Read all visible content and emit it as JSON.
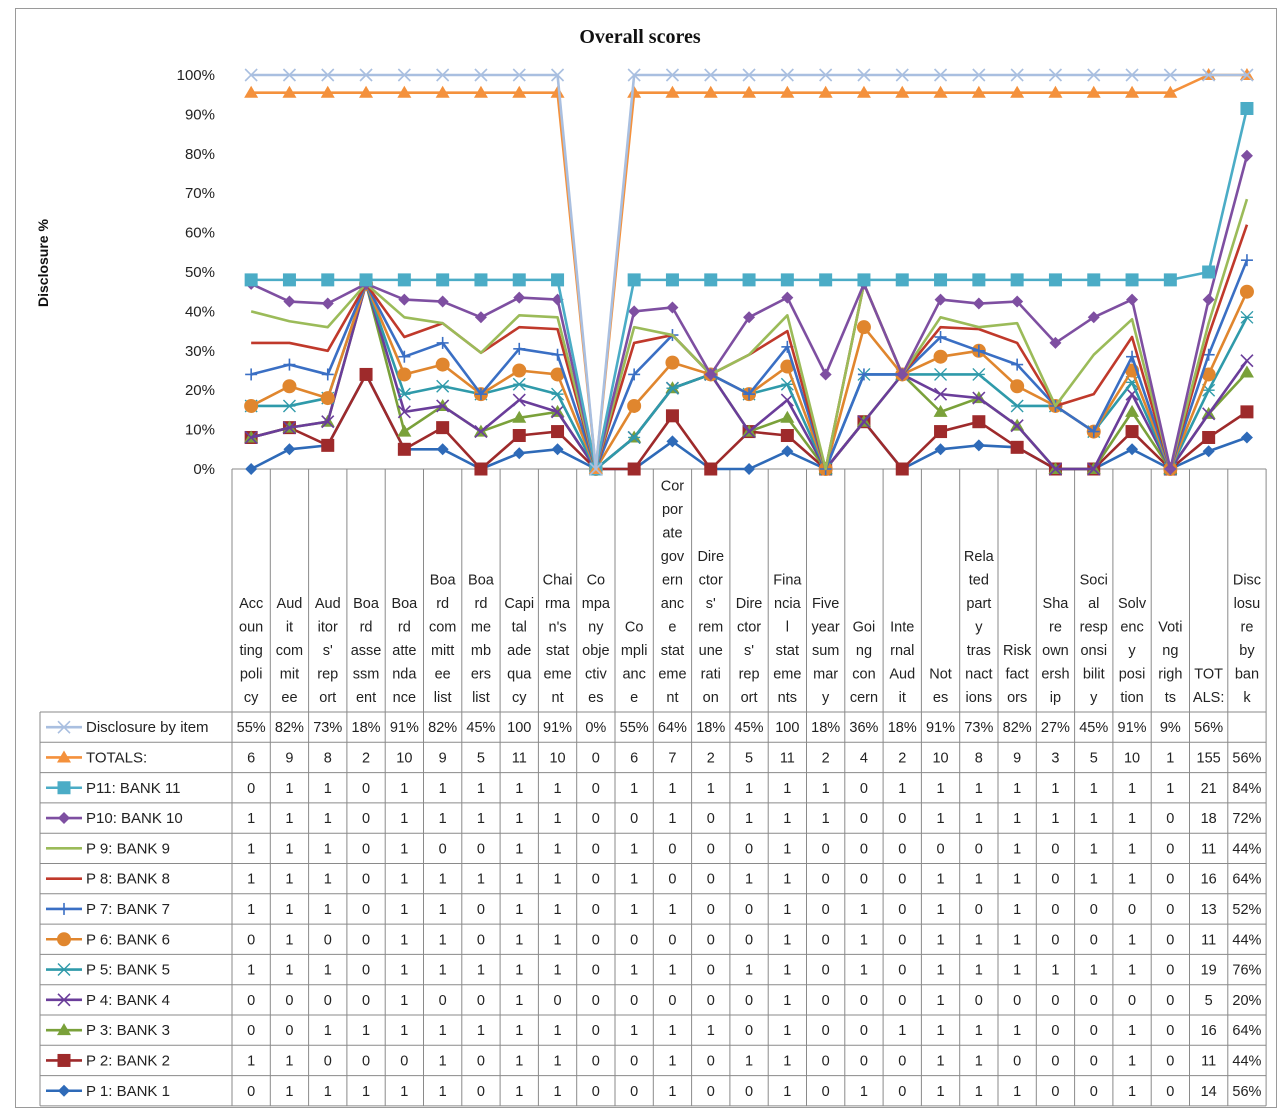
{
  "chart_data": {
    "type": "line",
    "title": "Overall scores",
    "ylabel": "Disclosure %",
    "xlabel": "",
    "ylim": [
      0,
      100
    ],
    "y_ticks": [
      "0%",
      "10%",
      "20%",
      "30%",
      "40%",
      "50%",
      "60%",
      "70%",
      "80%",
      "90%",
      "100%"
    ],
    "grid": false,
    "legend": "data-table-bottom",
    "categories": [
      "Accounting policy",
      "Audit commitee",
      "Auditor's report",
      "Board assessment",
      "Board attendance",
      "Board committee list",
      "Board members list",
      "Capital adequacy",
      "Chairman's statement",
      "Company objectives",
      "Compliance",
      "Corporate governance statement",
      "Director's remuneration",
      "Director's report",
      "Financial statements",
      "Five year summary",
      "Going concern",
      "Internal Audit",
      "Notes",
      "Related party trasnactions",
      "Risk factors",
      "Share ownership",
      "Social responsibility",
      "Solvency position",
      "Voting rights",
      "TOTALS:",
      "Disclosure by bank"
    ],
    "category_lines": [
      [
        "Acc",
        "oun",
        "ting",
        "poli",
        "cy"
      ],
      [
        "Aud",
        "it",
        "com",
        "mit",
        "ee"
      ],
      [
        "Aud",
        "itor",
        "s'",
        "rep",
        "ort"
      ],
      [
        "Boa",
        "rd",
        "asse",
        "ssm",
        "ent"
      ],
      [
        "Boa",
        "rd",
        "atte",
        "nda",
        "nce"
      ],
      [
        "Boa",
        "rd",
        "com",
        "mitt",
        "ee",
        "list"
      ],
      [
        "Boa",
        "rd",
        "me",
        "mb",
        "ers",
        "list"
      ],
      [
        "Capi",
        "tal",
        "ade",
        "qua",
        "cy"
      ],
      [
        "Chai",
        "rma",
        "n's",
        "stat",
        "eme",
        "nt"
      ],
      [
        "Co",
        "mpa",
        "ny",
        "obje",
        "ctiv",
        "es"
      ],
      [
        "Co",
        "mpli",
        "anc",
        "e"
      ],
      [
        "Cor",
        "por",
        "ate",
        "gov",
        "ern",
        "anc",
        "e",
        "stat",
        "eme",
        "nt"
      ],
      [
        "Dire",
        "ctor",
        "s'",
        "rem",
        "une",
        "rati",
        "on"
      ],
      [
        "Dire",
        "ctor",
        "s'",
        "rep",
        "ort"
      ],
      [
        "Fina",
        "ncia",
        "l",
        "stat",
        "eme",
        "nts"
      ],
      [
        "Five",
        "year",
        "sum",
        "mar",
        "y"
      ],
      [
        "Goi",
        "ng",
        "con",
        "cern"
      ],
      [
        "Inte",
        "rnal",
        "Aud",
        "it"
      ],
      [
        "Not",
        "es"
      ],
      [
        "Rela",
        "ted",
        "part",
        "y",
        "tras",
        "nact",
        "ions"
      ],
      [
        "Risk",
        "fact",
        "ors"
      ],
      [
        "Sha",
        "re",
        "own",
        "ersh",
        "ip"
      ],
      [
        "Soci",
        "al",
        "resp",
        "onsi",
        "bilit",
        "y"
      ],
      [
        "Solv",
        "enc",
        "y",
        "posi",
        "tion"
      ],
      [
        "Voti",
        "ng",
        "righ",
        "ts"
      ],
      [
        "TOT",
        "ALS:"
      ],
      [
        "Disc",
        "losu",
        "re",
        "by",
        "ban",
        "k"
      ]
    ],
    "table": {
      "disclosure_by_item": {
        "name": "Disclosure by item",
        "cells": [
          "55%",
          "82%",
          "73%",
          "18%",
          "91%",
          "82%",
          "45%",
          "100",
          "91%",
          "0%",
          "55%",
          "64%",
          "18%",
          "45%",
          "100",
          "18%",
          "36%",
          "18%",
          "91%",
          "73%",
          "82%",
          "27%",
          "45%",
          "91%",
          "9%",
          "56%",
          ""
        ]
      },
      "rows": [
        {
          "name": "TOTALS:",
          "cells": [
            "6",
            "9",
            "8",
            "2",
            "10",
            "9",
            "5",
            "11",
            "10",
            "0",
            "6",
            "7",
            "2",
            "5",
            "11",
            "2",
            "4",
            "2",
            "10",
            "8",
            "9",
            "3",
            "5",
            "10",
            "1",
            "155",
            "56%"
          ]
        },
        {
          "name": "P11: BANK 11",
          "cells": [
            "0",
            "1",
            "1",
            "0",
            "1",
            "1",
            "1",
            "1",
            "1",
            "0",
            "1",
            "1",
            "1",
            "1",
            "1",
            "1",
            "0",
            "1",
            "1",
            "1",
            "1",
            "1",
            "1",
            "1",
            "1",
            "21",
            "84%"
          ]
        },
        {
          "name": "P10: BANK 10",
          "cells": [
            "1",
            "1",
            "1",
            "0",
            "1",
            "1",
            "1",
            "1",
            "1",
            "0",
            "0",
            "1",
            "0",
            "1",
            "1",
            "1",
            "0",
            "0",
            "1",
            "1",
            "1",
            "1",
            "1",
            "1",
            "0",
            "18",
            "72%"
          ]
        },
        {
          "name": "P 9: BANK 9",
          "cells": [
            "1",
            "1",
            "1",
            "0",
            "1",
            "0",
            "0",
            "1",
            "1",
            "0",
            "1",
            "0",
            "0",
            "0",
            "1",
            "0",
            "0",
            "0",
            "0",
            "0",
            "1",
            "0",
            "1",
            "1",
            "0",
            "11",
            "44%"
          ]
        },
        {
          "name": "P 8: BANK 8",
          "cells": [
            "1",
            "1",
            "1",
            "0",
            "1",
            "1",
            "1",
            "1",
            "1",
            "0",
            "1",
            "0",
            "0",
            "1",
            "1",
            "0",
            "0",
            "0",
            "1",
            "1",
            "1",
            "0",
            "1",
            "1",
            "0",
            "16",
            "64%"
          ]
        },
        {
          "name": "P 7: BANK 7",
          "cells": [
            "1",
            "1",
            "1",
            "0",
            "1",
            "1",
            "0",
            "1",
            "1",
            "0",
            "1",
            "1",
            "0",
            "0",
            "1",
            "0",
            "1",
            "0",
            "1",
            "0",
            "1",
            "0",
            "0",
            "0",
            "0",
            "13",
            "52%"
          ]
        },
        {
          "name": "P 6: BANK 6",
          "cells": [
            "0",
            "1",
            "0",
            "0",
            "1",
            "1",
            "0",
            "1",
            "1",
            "0",
            "0",
            "0",
            "0",
            "0",
            "1",
            "0",
            "1",
            "0",
            "1",
            "1",
            "1",
            "0",
            "0",
            "1",
            "0",
            "11",
            "44%"
          ]
        },
        {
          "name": "P 5: BANK 5",
          "cells": [
            "1",
            "1",
            "1",
            "0",
            "1",
            "1",
            "1",
            "1",
            "1",
            "0",
            "1",
            "1",
            "0",
            "1",
            "1",
            "0",
            "1",
            "0",
            "1",
            "1",
            "1",
            "1",
            "1",
            "1",
            "0",
            "19",
            "76%"
          ]
        },
        {
          "name": "P 4: BANK 4",
          "cells": [
            "0",
            "0",
            "0",
            "0",
            "1",
            "0",
            "0",
            "1",
            "0",
            "0",
            "0",
            "0",
            "0",
            "0",
            "1",
            "0",
            "0",
            "0",
            "1",
            "0",
            "0",
            "0",
            "0",
            "0",
            "0",
            "5",
            "20%"
          ]
        },
        {
          "name": "P 3: BANK 3",
          "cells": [
            "0",
            "0",
            "1",
            "1",
            "1",
            "1",
            "1",
            "1",
            "1",
            "0",
            "1",
            "1",
            "1",
            "0",
            "1",
            "0",
            "0",
            "1",
            "1",
            "1",
            "1",
            "0",
            "0",
            "1",
            "0",
            "16",
            "64%"
          ]
        },
        {
          "name": "P 2: BANK 2",
          "cells": [
            "1",
            "1",
            "0",
            "0",
            "0",
            "1",
            "0",
            "1",
            "1",
            "0",
            "0",
            "1",
            "0",
            "1",
            "1",
            "0",
            "0",
            "0",
            "1",
            "1",
            "0",
            "0",
            "0",
            "1",
            "0",
            "11",
            "44%"
          ]
        },
        {
          "name": "P 1: BANK 1",
          "cells": [
            "0",
            "1",
            "1",
            "1",
            "1",
            "1",
            "0",
            "1",
            "1",
            "0",
            "0",
            "1",
            "0",
            "0",
            "1",
            "0",
            "1",
            "0",
            "1",
            "1",
            "1",
            "0",
            "0",
            "1",
            "0",
            "14",
            "56%"
          ]
        }
      ]
    },
    "series": [
      {
        "name": "Disclosure by item",
        "color": "#a9bfe0",
        "marker": "x",
        "values": [
          100,
          100,
          100,
          100,
          100,
          100,
          100,
          100,
          100,
          0,
          100,
          100,
          100,
          100,
          100,
          100,
          100,
          100,
          100,
          100,
          100,
          100,
          100,
          100,
          100,
          100,
          100
        ]
      },
      {
        "name": "TOTALS:",
        "color": "#f4913c",
        "marker": "triangle",
        "values": [
          95.5,
          95.5,
          95.5,
          95.5,
          95.5,
          95.5,
          95.5,
          95.5,
          95.5,
          0,
          95.5,
          95.5,
          95.5,
          95.5,
          95.5,
          95.5,
          95.5,
          95.5,
          95.5,
          95.5,
          95.5,
          95.5,
          95.5,
          95.5,
          95.5,
          100,
          100
        ]
      },
      {
        "name": "P11: BANK 11",
        "color": "#4bacc6",
        "marker": "square",
        "values": [
          48,
          48,
          48,
          48,
          48,
          48,
          48,
          48,
          48,
          0,
          48,
          48,
          48,
          48,
          48,
          48,
          48,
          48,
          48,
          48,
          48,
          48,
          48,
          48,
          48,
          50,
          91.5
        ]
      },
      {
        "name": "P10: BANK 10",
        "color": "#7e4fa1",
        "marker": "diamond",
        "values": [
          47,
          42.5,
          42,
          47,
          43,
          42.5,
          38.5,
          43.5,
          43,
          0,
          40,
          41,
          24,
          38.5,
          43.5,
          24,
          47,
          24,
          43,
          42,
          42.5,
          32,
          38.5,
          43,
          0,
          43,
          79.5
        ]
      },
      {
        "name": "P 9: BANK 9",
        "color": "#9bbb59",
        "marker": "none",
        "values": [
          40,
          37.5,
          36,
          47,
          38.5,
          37,
          29.5,
          39,
          38.5,
          0,
          36,
          34,
          24,
          29,
          39,
          0,
          47,
          24,
          38.5,
          36,
          37,
          16,
          29,
          38,
          0,
          37,
          68.5
        ]
      },
      {
        "name": "P 8: BANK 8",
        "color": "#c0392b",
        "marker": "none",
        "values": [
          32,
          32,
          30,
          47,
          33.5,
          37,
          29.5,
          36,
          35.5,
          0,
          32,
          34,
          24,
          29,
          35,
          0,
          47,
          24,
          36,
          35.5,
          32,
          16,
          19,
          33.5,
          0,
          34,
          62
        ]
      },
      {
        "name": "P 7: BANK 7",
        "color": "#3a6fc4",
        "marker": "plus",
        "values": [
          24,
          26.5,
          24,
          47,
          28.5,
          32,
          19,
          30.5,
          29,
          0,
          24,
          34,
          24,
          19,
          31,
          0,
          24,
          24,
          33.5,
          30,
          26.5,
          16,
          9.5,
          28.5,
          0,
          29,
          53
        ]
      },
      {
        "name": "P 6: BANK 6",
        "color": "#e0862e",
        "marker": "circle",
        "values": [
          16,
          21,
          18,
          47,
          24,
          26.5,
          19,
          25,
          24,
          0,
          16,
          27,
          24,
          19,
          26,
          0,
          36,
          24,
          28.5,
          30,
          21,
          16,
          9.5,
          25,
          0,
          24,
          45
        ]
      },
      {
        "name": "P 5: BANK 5",
        "color": "#2f9aaa",
        "marker": "asterisk",
        "values": [
          16,
          16,
          18,
          47,
          19,
          21,
          19,
          21.5,
          19,
          0,
          8,
          20.5,
          24,
          19,
          21.5,
          0,
          24,
          24,
          24,
          24,
          16,
          16,
          9.5,
          22,
          0,
          20,
          38.5
        ]
      },
      {
        "name": "P 4: BANK 4",
        "color": "#6a3d9a",
        "marker": "x",
        "values": [
          8,
          10.5,
          12,
          47,
          14.5,
          16,
          9.5,
          17.5,
          14.5,
          0,
          8,
          20.5,
          24,
          9.5,
          17.5,
          0,
          12,
          24,
          19,
          18,
          11,
          0,
          0,
          19,
          0,
          14,
          27.5
        ]
      },
      {
        "name": "P 3: BANK 3",
        "color": "#7aa13a",
        "marker": "triangle",
        "values": [
          8,
          10.5,
          12,
          47,
          9.5,
          16,
          9.5,
          13,
          14.5,
          0,
          8,
          20.5,
          24,
          9.5,
          13,
          0,
          12,
          24,
          14.5,
          18,
          11,
          0,
          0,
          14.5,
          0,
          14,
          24.5
        ]
      },
      {
        "name": "P 2: BANK 2",
        "color": "#9e2a2b",
        "marker": "square",
        "values": [
          8,
          10.5,
          6,
          24,
          5,
          10.5,
          0,
          8.5,
          9.5,
          0,
          0,
          13.5,
          0,
          9.5,
          8.5,
          0,
          12,
          0,
          9.5,
          12,
          5.5,
          0,
          0,
          9.5,
          0,
          8,
          14.5
        ]
      },
      {
        "name": "P 1: BANK 1",
        "color": "#2e6ab8",
        "marker": "diamond",
        "values": [
          0,
          5,
          6,
          24,
          5,
          5,
          0,
          4,
          5,
          0,
          0,
          7,
          0,
          0,
          4.5,
          0,
          12,
          0,
          5,
          6,
          5.5,
          0,
          0,
          5,
          0,
          4.5,
          8
        ]
      }
    ]
  }
}
